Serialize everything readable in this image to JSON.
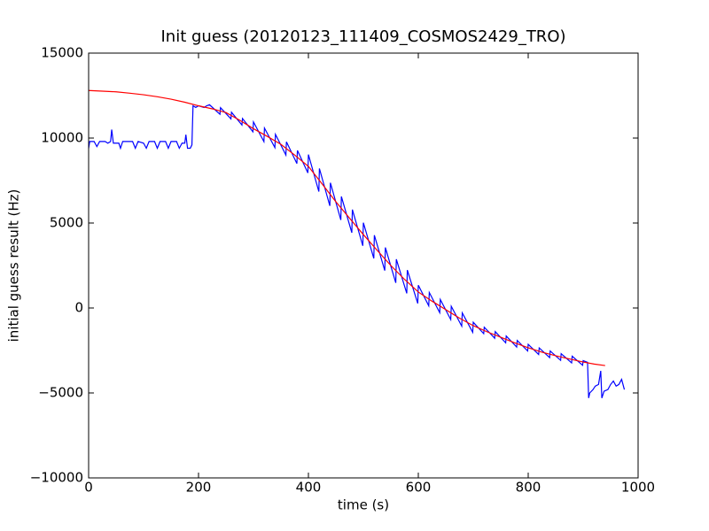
{
  "chart_data": {
    "type": "line",
    "title": "Init guess (20120123_111409_COSMOS2429_TRO)",
    "x_label": "time (s)",
    "y_label": "initial guess result (Hz)",
    "xlim": [
      0,
      1000
    ],
    "xticks": [
      0,
      200,
      400,
      600,
      800,
      1000
    ],
    "ylim": [
      -10000,
      15000
    ],
    "yticks": [
      {
        "value": -10000,
        "label": "−10000"
      },
      {
        "value": -5000,
        "label": "−5000"
      },
      0,
      5000,
      10000,
      15000
    ],
    "grid": false,
    "series": [
      {
        "color": "#0000ff",
        "x": [
          0,
          2,
          10,
          15,
          20,
          30,
          35,
          40,
          42,
          45,
          55,
          58,
          62,
          70,
          80,
          85,
          90,
          100,
          105,
          110,
          120,
          125,
          130,
          140,
          145,
          150,
          160,
          165,
          170,
          175,
          177,
          180,
          185,
          188,
          190,
          195,
          200,
          210,
          215,
          220,
          239,
          240,
          259,
          260,
          279,
          280,
          299,
          300,
          319,
          320,
          339,
          340,
          359,
          360,
          379,
          380,
          399,
          400,
          419,
          420,
          439,
          440,
          459,
          460,
          479,
          480,
          499,
          500,
          519,
          520,
          539,
          540,
          559,
          560,
          579,
          580,
          599,
          600,
          619,
          620,
          639,
          640,
          659,
          660,
          679,
          680,
          699,
          700,
          719,
          720,
          739,
          740,
          759,
          760,
          779,
          780,
          799,
          800,
          819,
          820,
          839,
          840,
          859,
          860,
          879,
          880,
          899,
          900,
          908,
          910,
          912,
          918,
          922,
          928,
          932,
          934,
          938,
          945,
          950,
          955,
          960,
          965,
          970,
          975
        ],
        "values": [
          9400,
          9800,
          9800,
          9500,
          9800,
          9800,
          9700,
          9800,
          10500,
          9700,
          9700,
          9400,
          9800,
          9800,
          9800,
          9400,
          9800,
          9700,
          9400,
          9800,
          9800,
          9400,
          9800,
          9800,
          9400,
          9800,
          9800,
          9400,
          9700,
          9700,
          10200,
          9400,
          9400,
          9600,
          11900,
          11800,
          11900,
          11800,
          11900,
          11960,
          11400,
          11790,
          11130,
          11520,
          10770,
          11150,
          10370,
          10950,
          9790,
          10590,
          9440,
          10220,
          9000,
          9780,
          8500,
          9270,
          7950,
          9030,
          6850,
          8210,
          6010,
          7370,
          5180,
          6560,
          4430,
          5790,
          3660,
          5020,
          2920,
          4280,
          2200,
          3560,
          1480,
          2870,
          860,
          2230,
          270,
          1340,
          130,
          910,
          -280,
          500,
          -680,
          100,
          -1070,
          -290,
          -1430,
          -840,
          -1510,
          -1130,
          -1780,
          -1390,
          -2050,
          -1650,
          -2300,
          -1910,
          -2530,
          -2140,
          -2740,
          -2350,
          -2920,
          -2530,
          -3080,
          -2690,
          -3230,
          -2840,
          -3370,
          -3100,
          -3200,
          -5300,
          -5000,
          -4800,
          -4600,
          -4500,
          -3700,
          -5300,
          -4900,
          -4800,
          -4500,
          -4300,
          -4600,
          -4500,
          -4200,
          -4800
        ]
      },
      {
        "color": "#ff0000",
        "x": [
          0,
          25,
          50,
          75,
          100,
          125,
          150,
          175,
          200,
          225,
          250,
          275,
          300,
          325,
          350,
          375,
          400,
          425,
          450,
          475,
          500,
          525,
          550,
          575,
          600,
          625,
          650,
          675,
          700,
          725,
          750,
          775,
          800,
          825,
          850,
          875,
          900,
          920,
          940
        ],
        "values": [
          12800,
          12760,
          12720,
          12640,
          12550,
          12430,
          12290,
          12110,
          11900,
          11720,
          11500,
          11050,
          10550,
          10100,
          9630,
          9000,
          8330,
          7300,
          6250,
          5280,
          4320,
          3400,
          2500,
          1680,
          940,
          400,
          -100,
          -600,
          -1040,
          -1400,
          -1720,
          -2050,
          -2340,
          -2600,
          -2810,
          -3000,
          -3180,
          -3300,
          -3390
        ]
      }
    ]
  }
}
